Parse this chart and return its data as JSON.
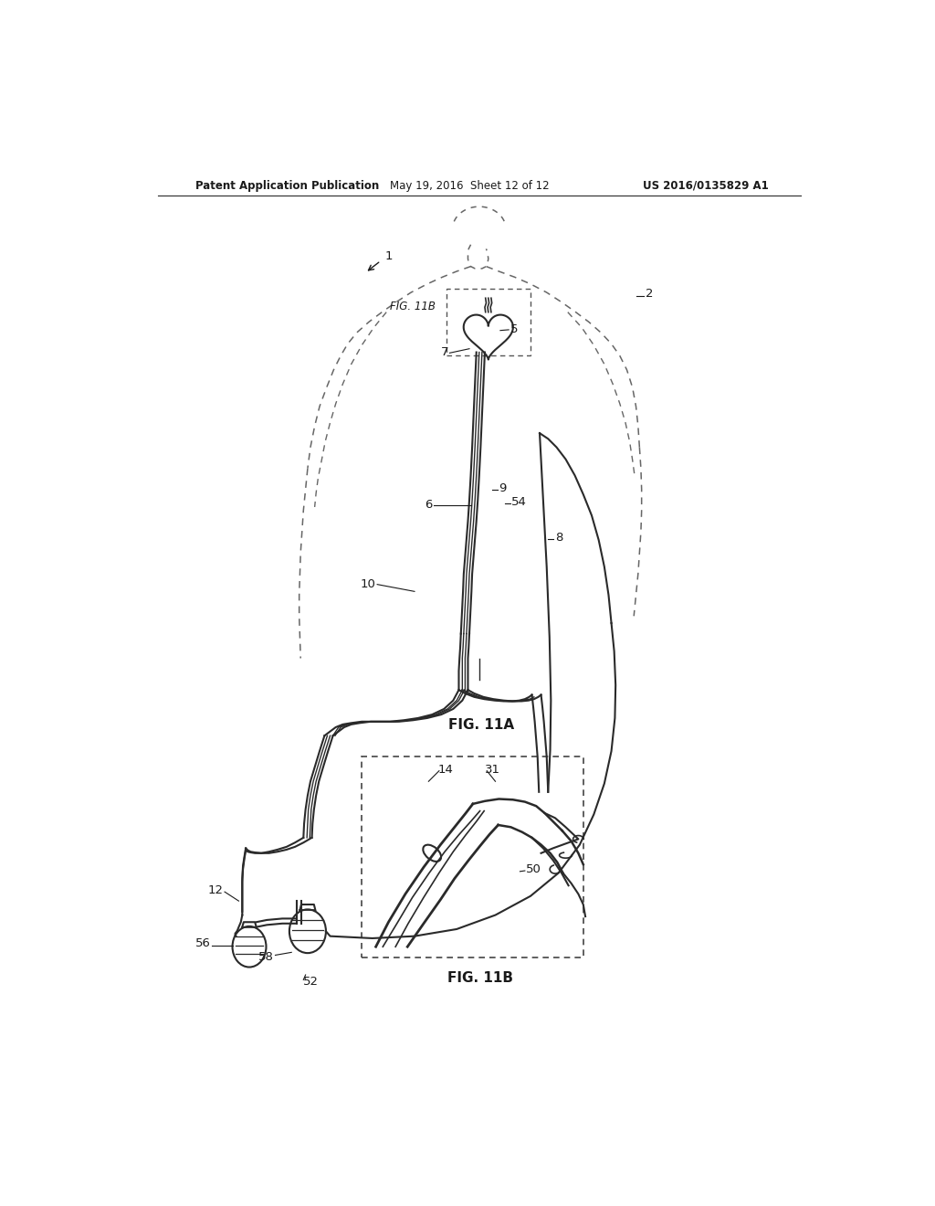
{
  "background_color": "#ffffff",
  "header_text": "Patent Application Publication",
  "header_date": "May 19, 2016  Sheet 12 of 12",
  "header_patent": "US 2016/0135829 A1",
  "fig_label_A": "FIG. 11A",
  "fig_label_B": "FIG. 11B",
  "label_1": "1",
  "label_2": "2",
  "label_5": "5",
  "label_6": "6",
  "label_7": "7",
  "label_8": "8",
  "label_9": "9",
  "label_10": "10",
  "label_12": "12",
  "label_14": "14",
  "label_31": "31",
  "label_50": "50",
  "label_52": "52",
  "label_54": "54",
  "label_56": "56",
  "label_58": "58",
  "line_color": "#2a2a2a",
  "dashed_color": "#666666",
  "text_color": "#1a1a1a"
}
